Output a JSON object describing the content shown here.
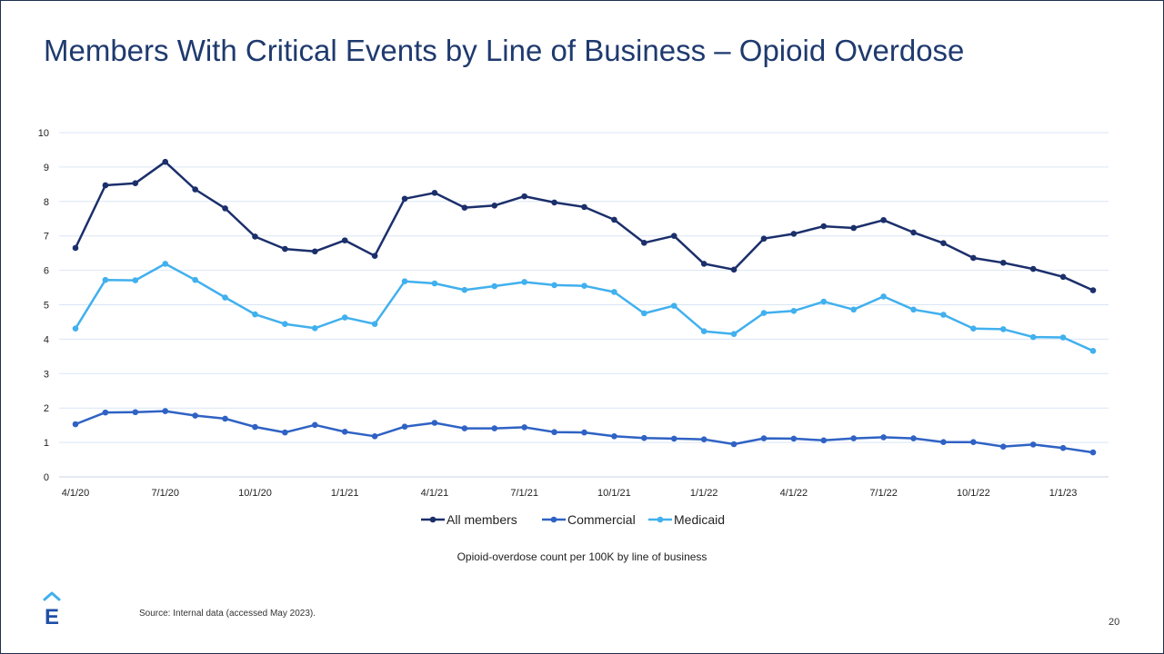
{
  "slide": {
    "title": "Members With Critical Events by Line of Business – Opioid Overdose",
    "caption": "Opioid-overdose count per 100K by line of business",
    "source": "Source: Internal data (accessed May 2023).",
    "page_number": "20",
    "logo_letter": "E"
  },
  "colors": {
    "all_members": "#1b2f6b",
    "commercial": "#2f62c4",
    "medicaid": "#41b0ee",
    "grid": "#d9e6f5",
    "axis_text": "#222222"
  },
  "chart_data": {
    "type": "line",
    "title": "Members With Critical Events by Line of Business – Opioid Overdose",
    "xlabel": "",
    "ylabel": "",
    "ylim": [
      0,
      10
    ],
    "yticks": [
      0,
      1,
      2,
      3,
      4,
      5,
      6,
      7,
      8,
      9,
      10
    ],
    "grid": true,
    "legend_position": "bottom-center",
    "x": [
      "4/1/20",
      "5/1/20",
      "6/1/20",
      "7/1/20",
      "8/1/20",
      "9/1/20",
      "10/1/20",
      "11/1/20",
      "12/1/20",
      "1/1/21",
      "2/1/21",
      "3/1/21",
      "4/1/21",
      "5/1/21",
      "6/1/21",
      "7/1/21",
      "8/1/21",
      "9/1/21",
      "10/1/21",
      "11/1/21",
      "12/1/21",
      "1/1/22",
      "2/1/22",
      "3/1/22",
      "4/1/22",
      "5/1/22",
      "6/1/22",
      "7/1/22",
      "8/1/22",
      "9/1/22",
      "10/1/22",
      "11/1/22",
      "12/1/22",
      "1/1/23",
      "2/1/23"
    ],
    "x_tick_labels": [
      "4/1/20",
      "7/1/20",
      "10/1/20",
      "1/1/21",
      "4/1/21",
      "7/1/21",
      "10/1/21",
      "1/1/22",
      "4/1/22",
      "7/1/22",
      "10/1/22",
      "1/1/23"
    ],
    "x_tick_every": 3,
    "series": [
      {
        "name": "All members",
        "color_key": "all_members",
        "values": [
          6.65,
          8.47,
          8.53,
          9.15,
          8.35,
          7.8,
          6.98,
          6.62,
          6.55,
          6.87,
          6.42,
          8.08,
          8.25,
          7.82,
          7.88,
          8.15,
          7.97,
          7.84,
          7.47,
          6.8,
          7.0,
          6.19,
          6.02,
          6.92,
          7.06,
          7.28,
          7.23,
          7.46,
          7.1,
          6.79,
          6.36,
          6.22,
          6.04,
          5.81,
          5.42
        ]
      },
      {
        "name": "Commercial",
        "color_key": "commercial",
        "values": [
          1.53,
          1.87,
          1.88,
          1.91,
          1.78,
          1.69,
          1.45,
          1.29,
          1.51,
          1.31,
          1.18,
          1.46,
          1.57,
          1.41,
          1.41,
          1.44,
          1.3,
          1.29,
          1.18,
          1.13,
          1.11,
          1.09,
          0.95,
          1.12,
          1.11,
          1.06,
          1.12,
          1.15,
          1.12,
          1.01,
          1.01,
          0.88,
          0.94,
          0.84,
          0.71
        ]
      },
      {
        "name": "Medicaid",
        "color_key": "medicaid",
        "values": [
          4.31,
          5.72,
          5.71,
          6.19,
          5.72,
          5.21,
          4.72,
          4.44,
          4.32,
          4.63,
          4.44,
          5.68,
          5.62,
          5.43,
          5.54,
          5.66,
          5.57,
          5.55,
          5.37,
          4.75,
          4.97,
          4.23,
          4.15,
          4.76,
          4.82,
          5.09,
          4.86,
          5.24,
          4.86,
          4.71,
          4.31,
          4.29,
          4.06,
          4.05,
          3.66
        ]
      }
    ]
  }
}
